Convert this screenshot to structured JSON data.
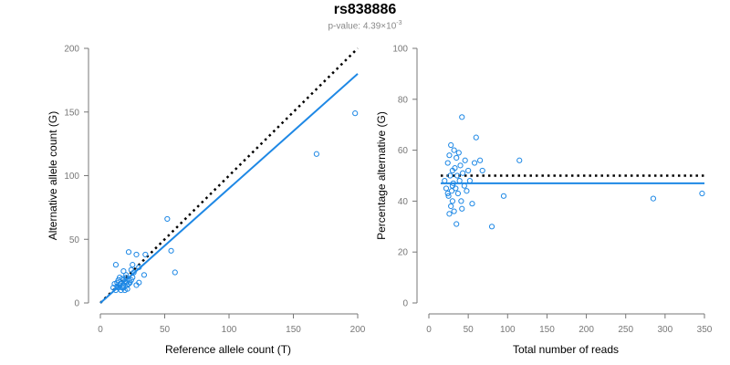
{
  "header": {
    "title": "rs838886",
    "subtitle_prefix": "p-value: 4.39×10",
    "subtitle_exponent": "-3"
  },
  "colors": {
    "points": "#1e88e5",
    "fit": "#1e88e5",
    "reference": "#000000",
    "axis": "#777777"
  },
  "chart_data": [
    {
      "type": "scatter",
      "xlabel": "Reference allele count (T)",
      "ylabel": "Alternative allele count (G)",
      "xlim": [
        0,
        200
      ],
      "ylim": [
        0,
        200
      ],
      "xticks": [
        0,
        50,
        100,
        150,
        200
      ],
      "yticks": [
        0,
        50,
        100,
        150,
        200
      ],
      "grid": false,
      "reference_line": {
        "style": "dotted",
        "color": "#000000",
        "x": [
          0,
          200
        ],
        "y": [
          0,
          200
        ]
      },
      "fit_line": {
        "style": "solid",
        "color": "#1e88e5",
        "x": [
          0,
          200
        ],
        "y": [
          0,
          180
        ]
      },
      "points": [
        [
          12,
          30
        ],
        [
          15,
          20
        ],
        [
          18,
          25
        ],
        [
          20,
          22
        ],
        [
          22,
          40
        ],
        [
          25,
          30
        ],
        [
          28,
          38
        ],
        [
          35,
          38
        ],
        [
          14,
          12
        ],
        [
          16,
          15
        ],
        [
          18,
          18
        ],
        [
          20,
          20
        ],
        [
          22,
          15
        ],
        [
          24,
          18
        ],
        [
          26,
          24
        ],
        [
          30,
          28
        ],
        [
          12,
          10
        ],
        [
          13,
          16
        ],
        [
          15,
          14
        ],
        [
          17,
          12
        ],
        [
          19,
          10
        ],
        [
          21,
          14
        ],
        [
          23,
          16
        ],
        [
          25,
          20
        ],
        [
          10,
          12
        ],
        [
          11,
          15
        ],
        [
          14,
          18
        ],
        [
          16,
          10
        ],
        [
          18,
          12
        ],
        [
          20,
          16
        ],
        [
          22,
          18
        ],
        [
          24,
          26
        ],
        [
          28,
          14
        ],
        [
          30,
          16
        ],
        [
          34,
          22
        ],
        [
          18,
          14
        ],
        [
          19,
          17
        ],
        [
          13,
          13
        ],
        [
          17,
          19
        ],
        [
          21,
          11
        ],
        [
          52,
          66
        ],
        [
          55,
          41
        ],
        [
          58,
          24
        ],
        [
          168,
          117
        ],
        [
          198,
          149
        ]
      ]
    },
    {
      "type": "scatter",
      "xlabel": "Total number of reads",
      "ylabel": "Percentage alternative (G)",
      "xlim": [
        0,
        350
      ],
      "ylim": [
        0,
        100
      ],
      "xticks": [
        0,
        50,
        100,
        150,
        200,
        250,
        300,
        350
      ],
      "yticks": [
        0,
        20,
        40,
        60,
        80,
        100
      ],
      "grid": false,
      "reference_line": {
        "style": "dotted",
        "color": "#000000",
        "y": 50
      },
      "fit_line": {
        "style": "solid",
        "color": "#1e88e5",
        "y": 47
      },
      "points": [
        [
          20,
          48
        ],
        [
          22,
          45
        ],
        [
          24,
          55
        ],
        [
          25,
          42
        ],
        [
          26,
          58
        ],
        [
          27,
          50
        ],
        [
          28,
          38
        ],
        [
          28,
          62
        ],
        [
          29,
          44
        ],
        [
          30,
          52
        ],
        [
          30,
          40
        ],
        [
          31,
          47
        ],
        [
          32,
          60
        ],
        [
          32,
          36
        ],
        [
          33,
          53
        ],
        [
          34,
          45
        ],
        [
          35,
          57
        ],
        [
          35,
          31
        ],
        [
          36,
          50
        ],
        [
          37,
          43
        ],
        [
          38,
          59
        ],
        [
          39,
          48
        ],
        [
          40,
          54
        ],
        [
          41,
          40
        ],
        [
          42,
          73
        ],
        [
          42,
          37
        ],
        [
          43,
          51
        ],
        [
          45,
          46
        ],
        [
          46,
          56
        ],
        [
          48,
          44
        ],
        [
          50,
          52
        ],
        [
          52,
          48
        ],
        [
          55,
          39
        ],
        [
          58,
          55
        ],
        [
          60,
          65
        ],
        [
          65,
          56
        ],
        [
          68,
          52
        ],
        [
          80,
          30
        ],
        [
          95,
          42
        ],
        [
          115,
          56
        ],
        [
          285,
          41
        ],
        [
          347,
          43
        ],
        [
          26,
          35
        ],
        [
          30,
          46
        ],
        [
          24,
          43
        ]
      ]
    }
  ]
}
